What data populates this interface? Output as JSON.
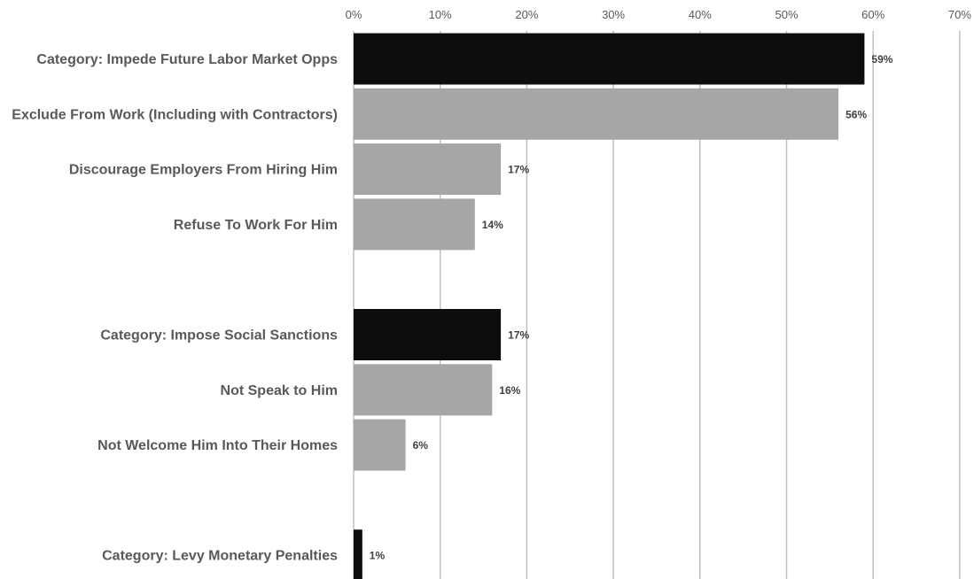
{
  "chart_data": {
    "type": "bar",
    "orientation": "horizontal",
    "title": "",
    "xlabel": "",
    "ylabel": "",
    "xlim": [
      0,
      70
    ],
    "x_ticks": [
      0,
      10,
      20,
      30,
      40,
      50,
      60,
      70
    ],
    "tick_suffix": "%",
    "axis_position": "top",
    "grid": true,
    "legend": "none",
    "colors": {
      "category": "#0d0d0d",
      "item": "#a6a6a6"
    },
    "rows": [
      {
        "label": "Category: Impede Future Labor Market Opps",
        "value": 59,
        "kind": "category",
        "value_label": "59%",
        "slot": 0
      },
      {
        "label": "Exclude From Work (Including with Contractors)",
        "value": 56,
        "kind": "item",
        "value_label": "56%",
        "slot": 1
      },
      {
        "label": "Discourage Employers From Hiring Him",
        "value": 17,
        "kind": "item",
        "value_label": "17%",
        "slot": 2
      },
      {
        "label": "Refuse To Work For Him",
        "value": 14,
        "kind": "item",
        "value_label": "14%",
        "slot": 3
      },
      {
        "label": "Category: Impose Social Sanctions",
        "value": 17,
        "kind": "category",
        "value_label": "17%",
        "slot": 5
      },
      {
        "label": "Not Speak to Him",
        "value": 16,
        "kind": "item",
        "value_label": "16%",
        "slot": 6
      },
      {
        "label": "Not Welcome Him Into Their Homes",
        "value": 6,
        "kind": "item",
        "value_label": "6%",
        "slot": 7
      },
      {
        "label": "Category: Levy Monetary Penalties",
        "value": 1,
        "kind": "category",
        "value_label": "1%",
        "slot": 9
      }
    ]
  }
}
